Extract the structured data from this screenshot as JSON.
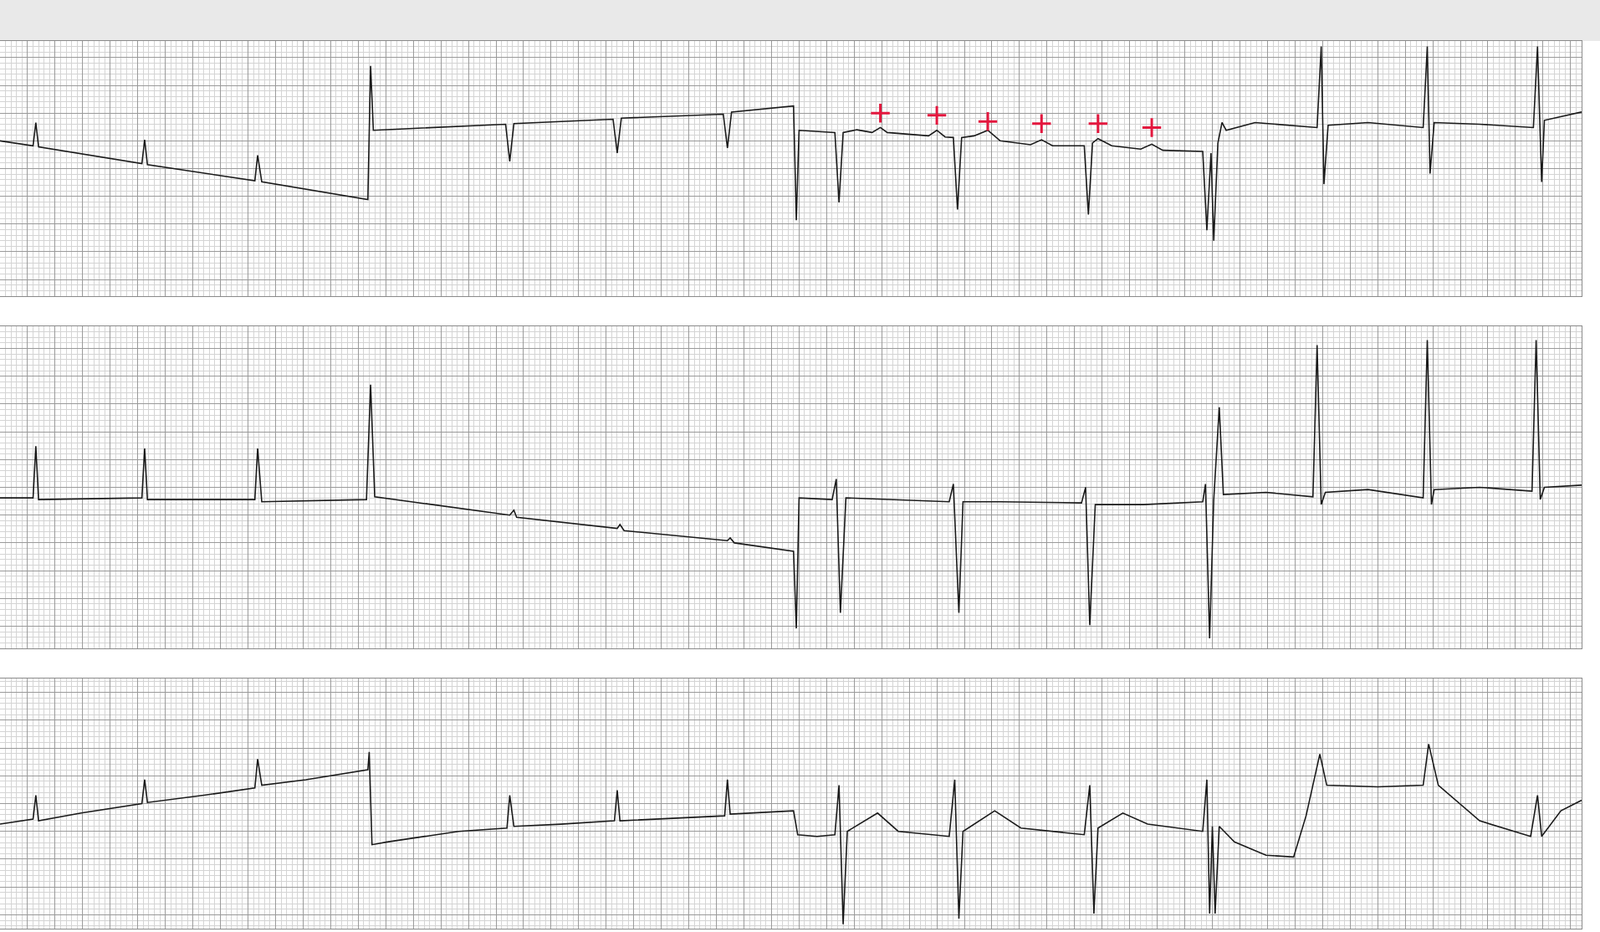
{
  "chart_data": [
    {
      "type": "line",
      "grid": true,
      "tick_labels": false,
      "xlim": [
        0,
        11.48
      ],
      "ylim": [
        -2.3,
        2.3
      ],
      "xticks": [
        0,
        0.2,
        0.4,
        0.6,
        0.8,
        1,
        1.2,
        1.4,
        1.6,
        1.8,
        2,
        2.2,
        2.4,
        2.6,
        2.8,
        3,
        3.2,
        3.4,
        3.6,
        3.8,
        4,
        4.2,
        4.4,
        4.6,
        4.8,
        5,
        5.2,
        5.4,
        5.6,
        5.8,
        6,
        6.2,
        6.4,
        6.6,
        6.8,
        7,
        7.2,
        7.4,
        7.6,
        7.8,
        8,
        8.2,
        8.4,
        8.6,
        8.8,
        9,
        9.2,
        9.4,
        9.6,
        9.8,
        10,
        10.2,
        10.4,
        10.6,
        10.8,
        11,
        11.2,
        11.4
      ],
      "yticks": [
        -2,
        -1.5,
        -1,
        -0.5,
        0,
        0.5,
        1,
        1.5,
        2
      ],
      "series": [
        {
          "type": "line",
          "color": "#1a1a1a",
          "line_style": "solid",
          "x": [
            0,
            0.24,
            0.26,
            0.28,
            1.03,
            1.05,
            1.07,
            1.85,
            1.87,
            1.9,
            2.67,
            2.69,
            2.71,
            3.67,
            3.7,
            3.73,
            4.45,
            4.48,
            4.51,
            5.25,
            5.28,
            5.31,
            5.76,
            5.78,
            5.8,
            6.06,
            6.09,
            6.12,
            6.22,
            6.33,
            6.39,
            6.44,
            6.74,
            6.8,
            6.86,
            6.92,
            6.95,
            6.98,
            7.07,
            7.17,
            7.26,
            7.48,
            7.56,
            7.64,
            7.87,
            7.9,
            7.93,
            7.97,
            8.07,
            8.28,
            8.36,
            8.44,
            8.73,
            8.76,
            8.79,
            8.81,
            8.84,
            8.87,
            8.9,
            9.11,
            9.56,
            9.59,
            9.61,
            9.64,
            9.93,
            10.33,
            10.36,
            10.38,
            10.41,
            10.74,
            11.13,
            11.16,
            11.19,
            11.21,
            11.48
          ],
          "values": [
            0.5,
            0.41,
            0.83,
            0.39,
            0.09,
            0.52,
            0.07,
            -0.22,
            0.24,
            -0.24,
            -0.56,
            1.85,
            0.69,
            0.8,
            0.13,
            0.81,
            0.89,
            0.28,
            0.91,
            0.98,
            0.37,
            1.02,
            1.13,
            -0.93,
            0.69,
            0.65,
            -0.61,
            0.65,
            0.7,
            0.65,
            0.74,
            0.65,
            0.59,
            0.69,
            0.57,
            0.56,
            -0.74,
            0.56,
            0.59,
            0.69,
            0.5,
            0.43,
            0.52,
            0.41,
            0.41,
            -0.83,
            0.46,
            0.54,
            0.41,
            0.35,
            0.44,
            0.33,
            0.31,
            -1.11,
            0.28,
            -1.3,
            0.46,
            0.83,
            0.69,
            0.83,
            0.74,
            2.2,
            -0.28,
            0.78,
            0.83,
            0.74,
            2.2,
            -0.09,
            0.83,
            0.8,
            0.74,
            2.2,
            -0.24,
            0.87,
            1.02
          ]
        },
        {
          "type": "scatter",
          "color": "#e3173e",
          "marker": "cross",
          "x": [
            6.39,
            6.8,
            7.17,
            7.56,
            7.97,
            8.36
          ],
          "values": [
            1.0,
            0.96,
            0.85,
            0.81,
            0.81,
            0.74
          ]
        }
      ]
    },
    {
      "type": "line",
      "grid": true,
      "tick_labels": false,
      "xlim": [
        0,
        11.48
      ],
      "ylim": [
        -2.9,
        2.9
      ],
      "xticks": [
        0,
        0.2,
        0.4,
        0.6,
        0.8,
        1,
        1.2,
        1.4,
        1.6,
        1.8,
        2,
        2.2,
        2.4,
        2.6,
        2.8,
        3,
        3.2,
        3.4,
        3.6,
        3.8,
        4,
        4.2,
        4.4,
        4.6,
        4.8,
        5,
        5.2,
        5.4,
        5.6,
        5.8,
        6,
        6.2,
        6.4,
        6.6,
        6.8,
        7,
        7.2,
        7.4,
        7.6,
        7.8,
        8,
        8.2,
        8.4,
        8.6,
        8.8,
        9,
        9.2,
        9.4,
        9.6,
        9.8,
        10,
        10.2,
        10.4,
        10.6,
        10.8,
        11,
        11.2,
        11.4
      ],
      "yticks": [
        -2.5,
        -2,
        -1.5,
        -1,
        -0.5,
        0,
        0.5,
        1,
        1.5,
        2,
        2.5
      ],
      "series": [
        {
          "type": "line",
          "color": "#1a1a1a",
          "line_style": "solid",
          "x": [
            0,
            0.24,
            0.26,
            0.28,
            1.03,
            1.05,
            1.07,
            1.85,
            1.87,
            1.9,
            2.66,
            2.69,
            2.72,
            3.7,
            3.73,
            3.75,
            4.48,
            4.5,
            4.53,
            5.28,
            5.3,
            5.33,
            5.76,
            5.78,
            5.8,
            6.04,
            6.07,
            6.1,
            6.14,
            6.44,
            6.89,
            6.92,
            6.96,
            6.99,
            7.26,
            7.85,
            7.88,
            7.91,
            7.95,
            8.3,
            8.73,
            8.75,
            8.78,
            8.81,
            8.85,
            8.88,
            9.19,
            9.53,
            9.56,
            9.59,
            9.62,
            9.93,
            10.33,
            10.36,
            10.39,
            10.41,
            10.74,
            11.12,
            11.15,
            11.18,
            11.21,
            11.48
          ],
          "values": [
            -0.19,
            -0.19,
            0.74,
            -0.22,
            -0.19,
            0.7,
            -0.22,
            -0.22,
            0.7,
            -0.26,
            -0.22,
            1.85,
            -0.17,
            -0.5,
            -0.41,
            -0.54,
            -0.74,
            -0.67,
            -0.78,
            -0.96,
            -0.91,
            -1,
            -1.15,
            -2.54,
            -0.19,
            -0.22,
            0.15,
            -2.26,
            -0.19,
            -0.22,
            -0.26,
            0.06,
            -2.26,
            -0.26,
            -0.26,
            -0.28,
            0,
            -2.48,
            -0.31,
            -0.31,
            -0.26,
            0.06,
            -2.72,
            -0.22,
            1.44,
            -0.13,
            -0.09,
            -0.17,
            2.56,
            -0.31,
            -0.09,
            -0.04,
            -0.19,
            2.65,
            -0.31,
            -0.04,
            0,
            -0.07,
            2.65,
            -0.22,
            0,
            0.04
          ]
        }
      ]
    },
    {
      "type": "line",
      "grid": true,
      "tick_labels": false,
      "xlim": [
        0,
        11.48
      ],
      "ylim": [
        -2.25,
        2.25
      ],
      "xticks": [
        0,
        0.2,
        0.4,
        0.6,
        0.8,
        1,
        1.2,
        1.4,
        1.6,
        1.8,
        2,
        2.2,
        2.4,
        2.6,
        2.8,
        3,
        3.2,
        3.4,
        3.6,
        3.8,
        4,
        4.2,
        4.4,
        4.6,
        4.8,
        5,
        5.2,
        5.4,
        5.6,
        5.8,
        6,
        6.2,
        6.4,
        6.6,
        6.8,
        7,
        7.2,
        7.4,
        7.6,
        7.8,
        8,
        8.2,
        8.4,
        8.6,
        8.8,
        9,
        9.2,
        9.4,
        9.6,
        9.8,
        10,
        10.2,
        10.4,
        10.6,
        10.8,
        11,
        11.2,
        11.4
      ],
      "yticks": [
        -2,
        -1.5,
        -1,
        -0.5,
        0,
        0.5,
        1,
        1.5,
        2
      ],
      "series": [
        {
          "type": "line",
          "color": "#1a1a1a",
          "line_style": "solid",
          "x": [
            0,
            0.24,
            0.26,
            0.28,
            0.59,
            1.03,
            1.05,
            1.07,
            1.48,
            1.85,
            1.87,
            1.9,
            2.22,
            2.67,
            2.68,
            2.7,
            2.81,
            3.33,
            3.68,
            3.7,
            3.73,
            4.07,
            4.46,
            4.48,
            4.5,
            4.89,
            5.26,
            5.28,
            5.3,
            5.76,
            5.79,
            5.93,
            6.06,
            6.09,
            6.12,
            6.15,
            6.37,
            6.52,
            6.89,
            6.93,
            6.96,
            6.99,
            7.22,
            7.41,
            7.87,
            7.91,
            7.94,
            7.97,
            8.15,
            8.33,
            8.73,
            8.76,
            8.78,
            8.8,
            8.82,
            8.85,
            8.96,
            9.19,
            9.39,
            9.48,
            9.58,
            9.63,
            10,
            10.33,
            10.37,
            10.44,
            10.74,
            11.11,
            11.16,
            11.19,
            11.33,
            11.48
          ],
          "values": [
            -0.37,
            -0.28,
            0.15,
            -0.31,
            -0.17,
            0,
            0.43,
            0.02,
            0.15,
            0.28,
            0.8,
            0.33,
            0.43,
            0.61,
            0.93,
            -0.74,
            -0.69,
            -0.5,
            -0.44,
            0.15,
            -0.41,
            -0.37,
            -0.31,
            0.24,
            -0.31,
            -0.26,
            -0.22,
            0.43,
            -0.19,
            -0.13,
            -0.56,
            -0.59,
            -0.56,
            0.33,
            -2.17,
            -0.5,
            -0.17,
            -0.5,
            -0.59,
            0.43,
            -2.07,
            -0.5,
            -0.13,
            -0.44,
            -0.56,
            0.33,
            -1.98,
            -0.44,
            -0.17,
            -0.37,
            -0.5,
            0.43,
            -1.98,
            -0.41,
            -1.98,
            -0.41,
            -0.69,
            -0.93,
            -0.96,
            -0.22,
            0.89,
            0.33,
            0.3,
            0.33,
            1.07,
            0.33,
            -0.31,
            -0.59,
            0.15,
            -0.59,
            -0.13,
            0.06
          ]
        }
      ]
    }
  ]
}
